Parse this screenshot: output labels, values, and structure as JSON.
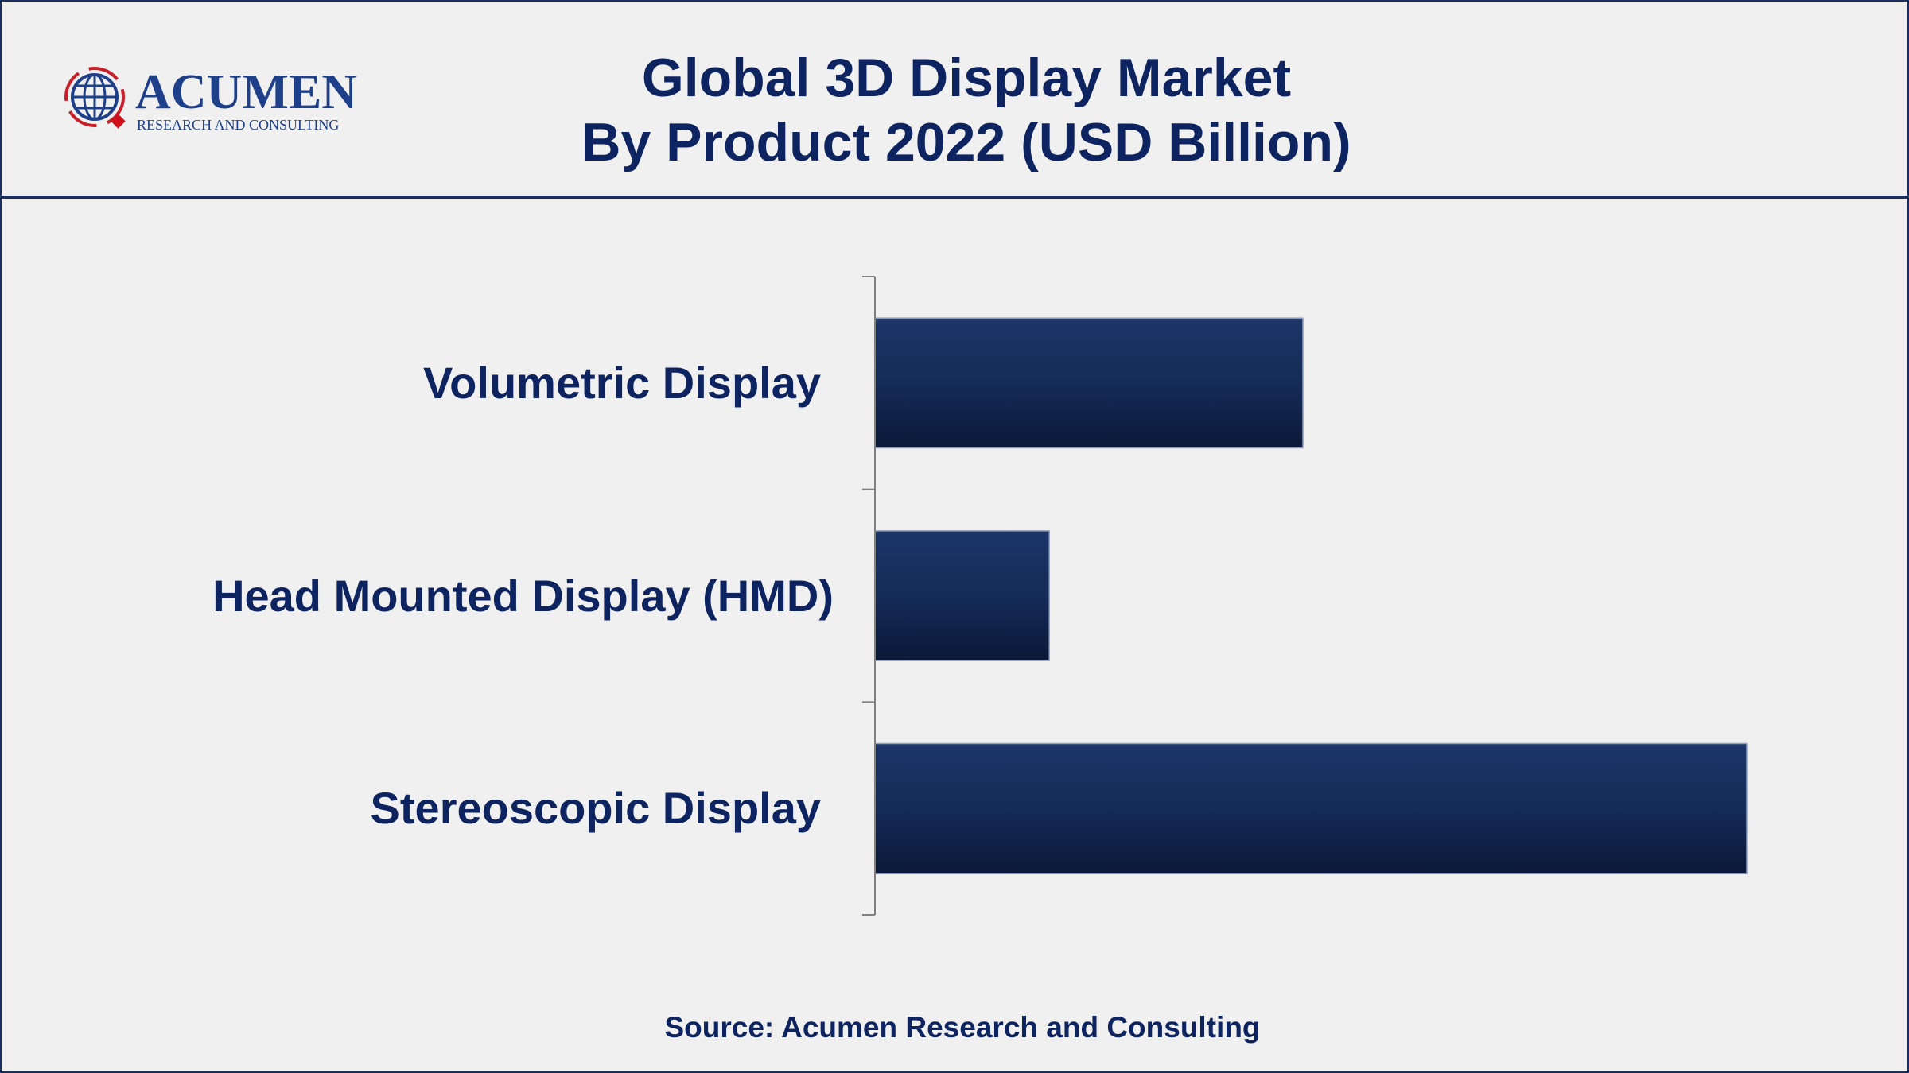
{
  "logo": {
    "name": "ACUMEN",
    "tagline": "RESEARCH AND CONSULTING"
  },
  "title_line1": "Global 3D Display Market",
  "title_line2": "By Product 2022 (USD Billion)",
  "source": "Source: Acumen Research and Consulting",
  "colors": {
    "bar_top": "#1c3668",
    "bar_bottom": "#0b1838",
    "text": "#0e2460",
    "axis": "#808080"
  },
  "chart_data": {
    "type": "bar",
    "orientation": "horizontal",
    "title": "Global 3D Display Market By Product 2022 (USD Billion)",
    "categories": [
      "Volumetric Display",
      "Head Mounted Display (HMD)",
      "Stereoscopic Display"
    ],
    "values": [
      0.54,
      0.22,
      1.1
    ],
    "values_note_unit": "relative (no axis values shown)",
    "xlim": [
      0,
      1.1
    ],
    "grid": false,
    "legend": "none"
  }
}
